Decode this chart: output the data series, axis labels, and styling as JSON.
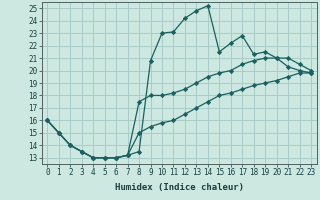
{
  "xlabel": "Humidex (Indice chaleur)",
  "ylabel": "",
  "xlim": [
    -0.5,
    23.5
  ],
  "ylim": [
    12.5,
    25.5
  ],
  "xticks": [
    0,
    1,
    2,
    3,
    4,
    5,
    6,
    7,
    8,
    9,
    10,
    11,
    12,
    13,
    14,
    15,
    16,
    17,
    18,
    19,
    20,
    21,
    22,
    23
  ],
  "yticks": [
    13,
    14,
    15,
    16,
    17,
    18,
    19,
    20,
    21,
    22,
    23,
    24,
    25
  ],
  "bg_color": "#cce8e0",
  "grid_color": "#a8ccc8",
  "line_color": "#1a6060",
  "curve_x": [
    0,
    1,
    2,
    3,
    4,
    5,
    6,
    7,
    8,
    9,
    10,
    11,
    12,
    13,
    14,
    15,
    16,
    17,
    18,
    19,
    20,
    21,
    22,
    23
  ],
  "curve_y1": [
    16,
    15,
    14,
    13.5,
    13.0,
    13.0,
    13.0,
    13.2,
    13.5,
    20.8,
    23.0,
    23.1,
    24.2,
    24.8,
    25.2,
    21.5,
    22.2,
    22.8,
    21.3,
    21.5,
    21.0,
    20.3,
    20.0,
    19.8
  ],
  "curve_y2": [
    16,
    15,
    14,
    13.5,
    13.0,
    13.0,
    13.0,
    13.2,
    17.5,
    18.0,
    18.0,
    18.2,
    18.5,
    19.0,
    19.5,
    19.8,
    20.0,
    20.5,
    20.8,
    21.0,
    21.0,
    21.0,
    20.5,
    20.0
  ],
  "curve_y3": [
    16,
    15,
    14,
    13.5,
    13.0,
    13.0,
    13.0,
    13.2,
    15.0,
    15.5,
    15.8,
    16.0,
    16.5,
    17.0,
    17.5,
    18.0,
    18.2,
    18.5,
    18.8,
    19.0,
    19.2,
    19.5,
    19.8,
    19.8
  ]
}
